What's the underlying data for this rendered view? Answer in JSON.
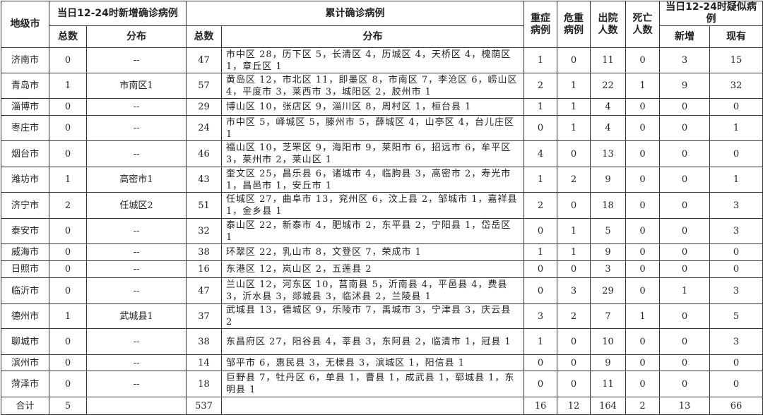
{
  "header": {
    "city": "地级市",
    "new_confirmed_group": "当日12-24时新增确诊病例",
    "new_total": "总数",
    "new_dist": "分布",
    "cum_group": "累计确诊病例",
    "cum_total": "总数",
    "cum_dist": "分布",
    "severe": "重症病例",
    "critical": "危重病例",
    "discharged": "出院人数",
    "deaths": "死亡人数",
    "suspected_group": "当日12-24时疑似病例",
    "susp_new": "新增",
    "susp_current": "现有"
  },
  "rows": [
    {
      "city": "济南市",
      "new_total": "0",
      "new_dist": "--",
      "cum_total": "47",
      "cum_dist": "市中区 28，历下区 5，长清区 4，历城区 4，天桥区 4，槐荫区 1，章丘区 1",
      "severe": "1",
      "critical": "0",
      "discharged": "11",
      "deaths": "0",
      "susp_new": "3",
      "susp_current": "15"
    },
    {
      "city": "青岛市",
      "new_total": "1",
      "new_dist": "市南区1",
      "cum_total": "57",
      "cum_dist": "黄岛区 12，市北区 11，即墨区 8，市南区 7，李沧区 6，崂山区 4，平度市 3，莱西市 3，城阳区 2，胶州市 1",
      "severe": "2",
      "critical": "1",
      "discharged": "22",
      "deaths": "1",
      "susp_new": "9",
      "susp_current": "32"
    },
    {
      "city": "淄博市",
      "new_total": "0",
      "new_dist": "--",
      "cum_total": "29",
      "cum_dist": "博山区 10，张店区 9，淄川区 8，周村区 1，桓台县 1",
      "severe": "1",
      "critical": "1",
      "discharged": "4",
      "deaths": "0",
      "susp_new": "0",
      "susp_current": "0"
    },
    {
      "city": "枣庄市",
      "new_total": "0",
      "new_dist": "--",
      "cum_total": "24",
      "cum_dist": "市中区 5，峄城区 5，滕州市 5，薛城区 4，山亭区 4，台儿庄区 1",
      "severe": "0",
      "critical": "1",
      "discharged": "4",
      "deaths": "0",
      "susp_new": "0",
      "susp_current": "1"
    },
    {
      "city": "烟台市",
      "new_total": "0",
      "new_dist": "--",
      "cum_total": "46",
      "cum_dist": "福山区 10，芝罘区 9，海阳市 9，莱阳市 6，招远市 6，牟平区 3，莱州市 2，莱山区 1",
      "severe": "4",
      "critical": "0",
      "discharged": "13",
      "deaths": "0",
      "susp_new": "0",
      "susp_current": "0"
    },
    {
      "city": "潍坊市",
      "new_total": "1",
      "new_dist": "高密市1",
      "cum_total": "43",
      "cum_dist": "奎文区 25，昌乐县 6，诸城市 4，临朐县 3，高密市 2，寿光市 1，昌邑市 1，安丘市 1",
      "severe": "1",
      "critical": "2",
      "discharged": "9",
      "deaths": "0",
      "susp_new": "0",
      "susp_current": "1"
    },
    {
      "city": "济宁市",
      "new_total": "2",
      "new_dist": "任城区2",
      "cum_total": "51",
      "cum_dist": "任城区 27，曲阜市 13，兖州区 6，汶上县 2，邹城市 1，嘉祥县 1，金乡县 1",
      "severe": "2",
      "critical": "0",
      "discharged": "18",
      "deaths": "0",
      "susp_new": "0",
      "susp_current": "3"
    },
    {
      "city": "泰安市",
      "new_total": "0",
      "new_dist": "--",
      "cum_total": "32",
      "cum_dist": "泰山区 22，新泰市 4，肥城市 2，东平县 2，宁阳县 1，岱岳区 1",
      "severe": "0",
      "critical": "1",
      "discharged": "5",
      "deaths": "0",
      "susp_new": "0",
      "susp_current": "3"
    },
    {
      "city": "威海市",
      "new_total": "0",
      "new_dist": "--",
      "cum_total": "38",
      "cum_dist": "环翠区 22，乳山市 8，文登区 7，荣成市 1",
      "severe": "1",
      "critical": "1",
      "discharged": "9",
      "deaths": "0",
      "susp_new": "0",
      "susp_current": "0"
    },
    {
      "city": "日照市",
      "new_total": "0",
      "new_dist": "--",
      "cum_total": "16",
      "cum_dist": "东港区 12，岚山区 2，五莲县 2",
      "severe": "0",
      "critical": "0",
      "discharged": "3",
      "deaths": "0",
      "susp_new": "0",
      "susp_current": "0"
    },
    {
      "city": "临沂市",
      "new_total": "0",
      "new_dist": "--",
      "cum_total": "47",
      "cum_dist": "兰山区 12，河东区 10，莒南县 5，沂南县 4，平邑县 4，费县 3，沂水县 3，郯城县 3，临沭县 2，兰陵县 1",
      "severe": "0",
      "critical": "3",
      "discharged": "29",
      "deaths": "0",
      "susp_new": "1",
      "susp_current": "3"
    },
    {
      "city": "德州市",
      "new_total": "1",
      "new_dist": "武城县1",
      "cum_total": "37",
      "cum_dist": "武城县 13，德城区 9，乐陵市 7，禹城市 3，宁津县 3，庆云县 2",
      "severe": "3",
      "critical": "2",
      "discharged": "7",
      "deaths": "1",
      "susp_new": "0",
      "susp_current": "5"
    },
    {
      "city": "聊城市",
      "new_total": "0",
      "new_dist": "--",
      "cum_total": "38",
      "cum_dist": "东昌府区 27，阳谷县 4，莘县 3，东阿县 2，临清市 1，冠县 1",
      "severe": "1",
      "critical": "0",
      "discharged": "10",
      "deaths": "0",
      "susp_new": "0",
      "susp_current": "3"
    },
    {
      "city": "滨州市",
      "new_total": "0",
      "new_dist": "--",
      "cum_total": "14",
      "cum_dist": "邹平市 6，惠民县 3，无棣县 3，滨城区 1，阳信县 1",
      "severe": "0",
      "critical": "0",
      "discharged": "9",
      "deaths": "0",
      "susp_new": "0",
      "susp_current": "0"
    },
    {
      "city": "菏泽市",
      "new_total": "0",
      "new_dist": "--",
      "cum_total": "18",
      "cum_dist": "巨野县 7，牡丹区 6，单县 1，曹县 1，成武县 1，郓城县 1，东明县 1",
      "severe": "0",
      "critical": "0",
      "discharged": "11",
      "deaths": "0",
      "susp_new": "0",
      "susp_current": "0"
    },
    {
      "city": "合计",
      "new_total": "5",
      "new_dist": "",
      "cum_total": "537",
      "cum_dist": "",
      "severe": "16",
      "critical": "12",
      "discharged": "164",
      "deaths": "2",
      "susp_new": "13",
      "susp_current": "66"
    }
  ]
}
